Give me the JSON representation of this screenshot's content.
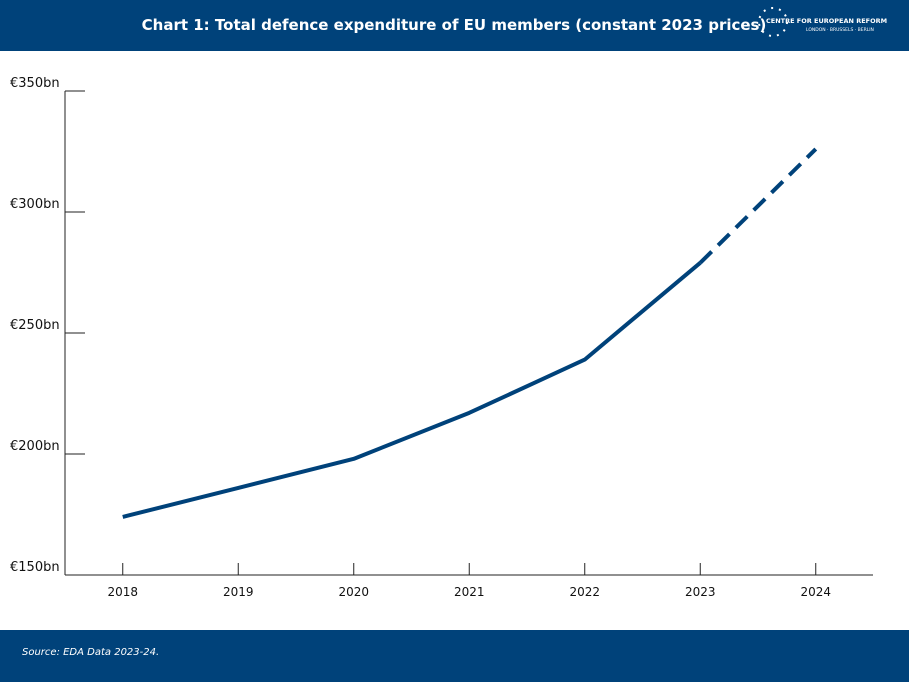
{
  "chart_data": {
    "type": "line",
    "title": "Chart 1: Total defence expenditure of EU members (constant 2023 prices)",
    "source": "Source:  EDA Data 2023-24.",
    "categories": [
      "2018",
      "2019",
      "2020",
      "2021",
      "2022",
      "2023",
      "2024"
    ],
    "values": [
      174,
      186,
      198,
      217,
      239,
      279,
      326
    ],
    "color": "#00427a",
    "dashed_from_index": 5,
    "ylim": [
      150,
      350
    ],
    "yticks": [
      {
        "value": 150,
        "label": "€150bn"
      },
      {
        "value": 200,
        "label": "€200bn"
      },
      {
        "value": 250,
        "label": "€250bn"
      },
      {
        "value": 300,
        "label": "€300bn"
      },
      {
        "value": 350,
        "label": "€350bn"
      }
    ],
    "grid": false
  },
  "logo": {
    "name": "CENTRE FOR EUROPEAN REFORM",
    "cities": "LONDON · BRUSSELS · BERLIN"
  }
}
